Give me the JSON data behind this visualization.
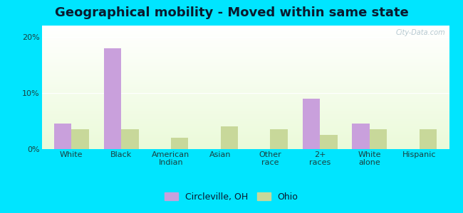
{
  "title": "Geographical mobility - Moved within same state",
  "categories": [
    "White",
    "Black",
    "American\nIndian",
    "Asian",
    "Other\nrace",
    "2+\nraces",
    "White\nalone",
    "Hispanic"
  ],
  "circleville_values": [
    4.5,
    18.0,
    0.0,
    0.0,
    0.0,
    9.0,
    4.5,
    0.0
  ],
  "ohio_values": [
    3.5,
    3.5,
    2.0,
    4.0,
    3.5,
    2.5,
    3.5,
    3.5
  ],
  "circleville_color": "#c9a0dc",
  "ohio_color": "#c8d89a",
  "bar_width": 0.35,
  "ylim": [
    0,
    22
  ],
  "yticks": [
    0,
    10,
    20
  ],
  "ytick_labels": [
    "0%",
    "10%",
    "20%"
  ],
  "legend_labels": [
    "Circleville, OH",
    "Ohio"
  ],
  "background_outer": "#00e5ff",
  "title_fontsize": 13,
  "tick_fontsize": 8,
  "legend_fontsize": 9,
  "watermark": "City-Data.com"
}
